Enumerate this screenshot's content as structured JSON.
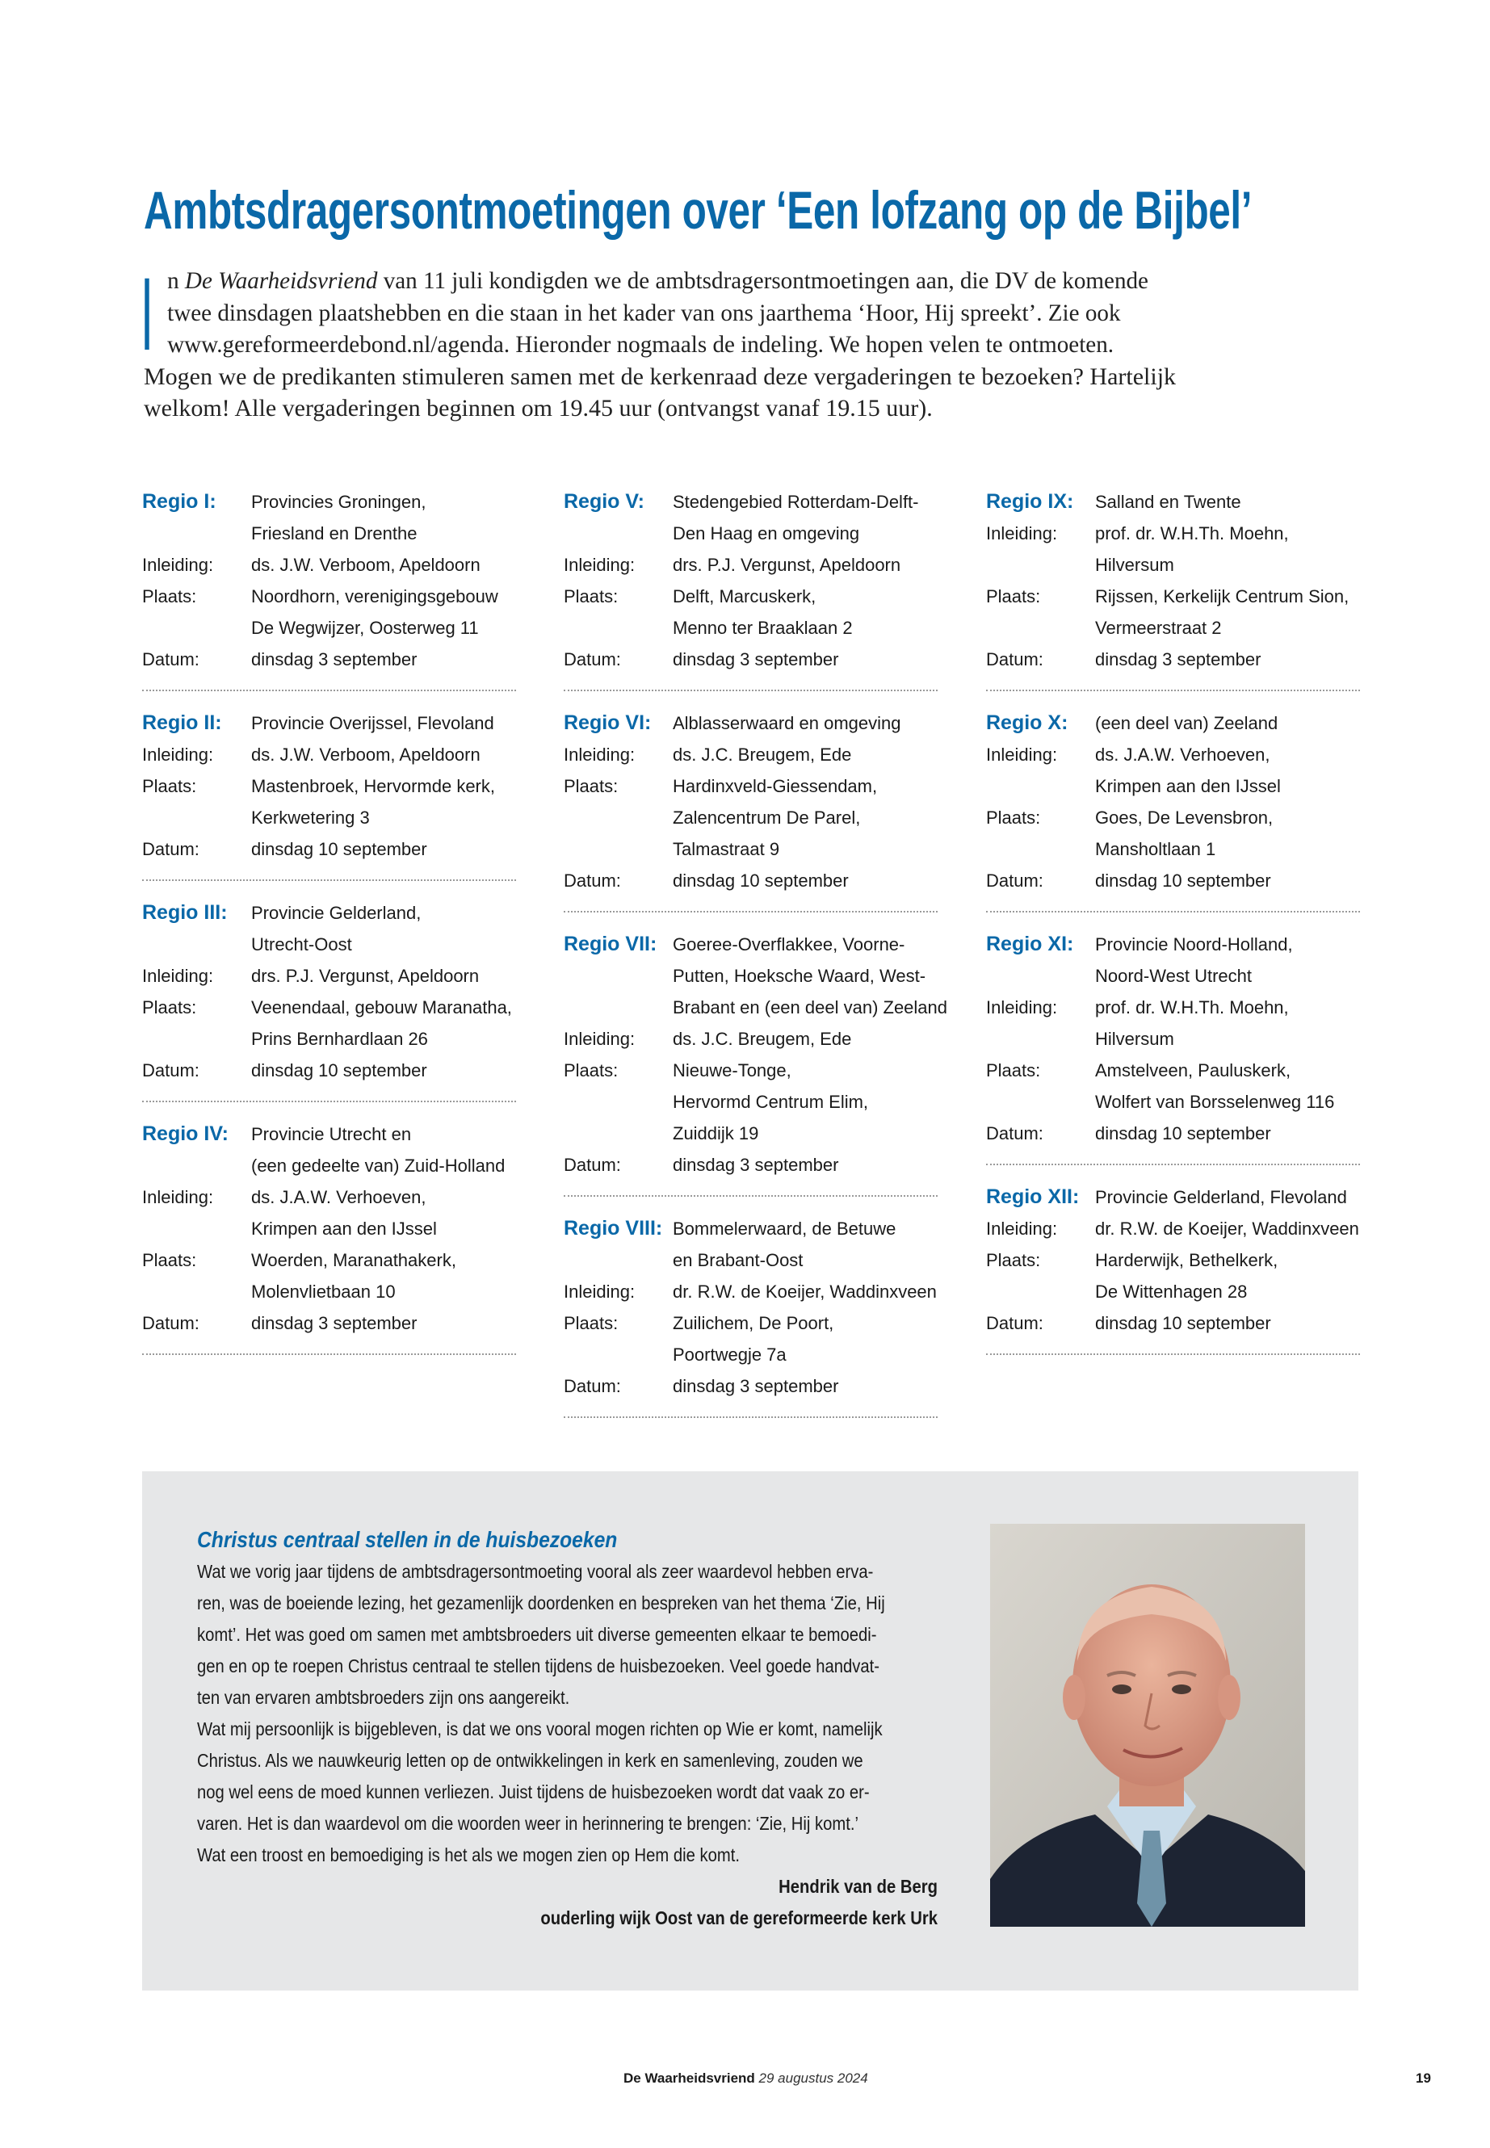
{
  "accent_color": "#0a68a8",
  "box_color": "#e6e7e8",
  "title": "Ambtsdragersontmoetingen over ‘Een lofzang op de Bijbel’",
  "intro": {
    "drop_cap": "I",
    "line1_a": "n ",
    "line1_italic": "De Waarheidsvriend",
    "line1_b": " van 11 juli kondigden we de ambtsdragersontmoetingen aan, die DV de komende",
    "lines": [
      "twee dinsdagen plaatshebben en die staan in het kader van ons jaarthema ‘Hoor, Hij spreekt’. Zie ook",
      "www.gereformeerdebond.nl/agenda. Hieronder nogmaals de indeling. We hopen velen te ontmoeten.",
      "Mogen we de predikanten stimuleren samen met de kerkenraad deze vergaderingen te bezoeken? Hartelijk",
      "welkom! Alle vergaderingen beginnen om 19.45 uur (ontvangst vanaf 19.15 uur)."
    ]
  },
  "labels": {
    "inleiding": "Inleiding:",
    "plaats": "Plaats:",
    "datum": "Datum:"
  },
  "columns": [
    [
      {
        "regio": "Regio I:",
        "gebied": [
          "Provincies Groningen,",
          "Friesland en Drenthe"
        ],
        "inleiding": [
          "ds. J.W. Verboom, Apeldoorn"
        ],
        "plaats": [
          "Noordhorn, verenigingsgebouw",
          "De Wegwijzer, Oosterweg 11"
        ],
        "datum": [
          "dinsdag 3 september"
        ]
      },
      {
        "regio": "Regio II:",
        "gebied": [
          "Provincie Overijssel, Flevoland"
        ],
        "inleiding": [
          "ds. J.W. Verboom, Apeldoorn"
        ],
        "plaats": [
          "Mastenbroek, Hervormde kerk,",
          "Kerkwetering 3"
        ],
        "datum": [
          "dinsdag 10 september"
        ]
      },
      {
        "regio": "Regio III:",
        "gebied": [
          "Provincie Gelderland,",
          "Utrecht-Oost"
        ],
        "inleiding": [
          "drs. P.J. Vergunst, Apeldoorn"
        ],
        "plaats": [
          "Veenendaal, gebouw Maranatha,",
          "Prins Bernhardlaan 26"
        ],
        "datum": [
          "dinsdag 10 september"
        ]
      },
      {
        "regio": "Regio IV:",
        "gebied": [
          "Provincie Utrecht en",
          "(een gedeelte van) Zuid-Holland"
        ],
        "inleiding": [
          "ds. J.A.W. Verhoeven,",
          "Krimpen aan den IJssel"
        ],
        "plaats": [
          "Woerden, Maranathakerk,",
          "Molenvlietbaan 10"
        ],
        "datum": [
          "dinsdag 3 september"
        ]
      }
    ],
    [
      {
        "regio": "Regio V:",
        "gebied": [
          "Stedengebied Rotterdam-Delft-",
          "Den Haag en omgeving"
        ],
        "inleiding": [
          "drs. P.J. Vergunst, Apeldoorn"
        ],
        "plaats": [
          "Delft, Marcuskerk,",
          "Menno ter Braaklaan 2"
        ],
        "datum": [
          "dinsdag 3 september"
        ]
      },
      {
        "regio": "Regio VI:",
        "gebied": [
          "Alblasserwaard en omgeving"
        ],
        "inleiding": [
          "ds. J.C. Breugem, Ede"
        ],
        "plaats": [
          "Hardinxveld-Giessendam,",
          "Zalencentrum De Parel,",
          "Talmastraat 9"
        ],
        "datum": [
          "dinsdag 10 september"
        ]
      },
      {
        "regio": "Regio VII:",
        "gebied": [
          "Goeree-Overflakkee, Voorne-",
          "Putten, Hoeksche Waard, West-",
          "Brabant en (een deel van) Zeeland"
        ],
        "inleiding": [
          "ds. J.C. Breugem, Ede"
        ],
        "plaats": [
          "Nieuwe-Tonge,",
          "Hervormd Centrum Elim,",
          "Zuiddijk 19"
        ],
        "datum": [
          "dinsdag 3 september"
        ]
      },
      {
        "regio": "Regio VIII:",
        "gebied": [
          "Bommelerwaard, de Betuwe",
          "en Brabant-Oost"
        ],
        "inleiding": [
          "dr. R.W. de Koeijer, Waddinxveen"
        ],
        "plaats": [
          "Zuilichem, De Poort,",
          "Poortwegje 7a"
        ],
        "datum": [
          "dinsdag 3 september"
        ]
      }
    ],
    [
      {
        "regio": "Regio IX:",
        "gebied": [
          "Salland en Twente"
        ],
        "inleiding": [
          "prof. dr. W.H.Th. Moehn,",
          "Hilversum"
        ],
        "plaats": [
          "Rijssen, Kerkelijk Centrum Sion,",
          "Vermeerstraat 2"
        ],
        "datum": [
          "dinsdag 3 september"
        ]
      },
      {
        "regio": "Regio X:",
        "gebied": [
          "(een deel van) Zeeland"
        ],
        "inleiding": [
          "ds. J.A.W. Verhoeven,",
          "Krimpen aan den IJssel"
        ],
        "plaats": [
          "Goes, De Levensbron,",
          "Mansholtlaan 1"
        ],
        "datum": [
          "dinsdag 10 september"
        ]
      },
      {
        "regio": "Regio XI:",
        "gebied": [
          "Provincie Noord-Holland,",
          "Noord-West Utrecht"
        ],
        "inleiding": [
          "prof. dr. W.H.Th. Moehn,",
          "Hilversum"
        ],
        "plaats": [
          "Amstelveen, Pauluskerk,",
          "Wolfert van Borsselenweg 116"
        ],
        "datum": [
          "dinsdag 10 september"
        ]
      },
      {
        "regio": "Regio XII:",
        "gebied": [
          "Provincie Gelderland, Flevoland"
        ],
        "inleiding": [
          "dr. R.W. de Koeijer, Waddinxveen"
        ],
        "plaats": [
          "Harderwijk, Bethelkerk,",
          "De Wittenhagen 28"
        ],
        "datum": [
          "dinsdag 10 september"
        ]
      }
    ]
  ],
  "box": {
    "heading": "Christus centraal stellen in de huisbezoeken",
    "lines": [
      "Wat we vorig jaar tijdens de ambtsdragersontmoeting vooral als zeer waardevol hebben erva-",
      "ren, was de boeiende lezing, het gezamenlijk doordenken en bespreken van het thema ‘Zie, Hij",
      "komt’. Het was goed om samen met ambtsbroeders uit diverse gemeenten elkaar te bemoedi-",
      "gen en op te roepen Christus centraal te stellen tijdens de huisbezoeken. Veel goede handvat-",
      "ten van ervaren ambtsbroeders zijn ons aangereikt.",
      "Wat mij persoonlijk is bijgebleven, is dat we ons vooral mogen richten op Wie er komt, namelijk",
      "Christus. Als we nauwkeurig letten op de ontwikkelingen in kerk en samenleving, zouden we",
      "nog wel eens de moed kunnen verliezen. Juist tijdens de huisbezoeken wordt dat vaak zo er-",
      "varen. Het is dan waardevol om die woorden weer in herinnering te brengen: ‘Zie, Hij komt.’",
      "Wat een troost en bemoediging is het als we mogen zien op Hem die komt."
    ],
    "author": "Hendrik van de Berg",
    "author_role": "ouderling wijk Oost van de gereformeerde kerk Urk"
  },
  "footer": {
    "publication": "De Waarheidsvriend",
    "date": "29 augustus 2024",
    "page_number": "19"
  }
}
